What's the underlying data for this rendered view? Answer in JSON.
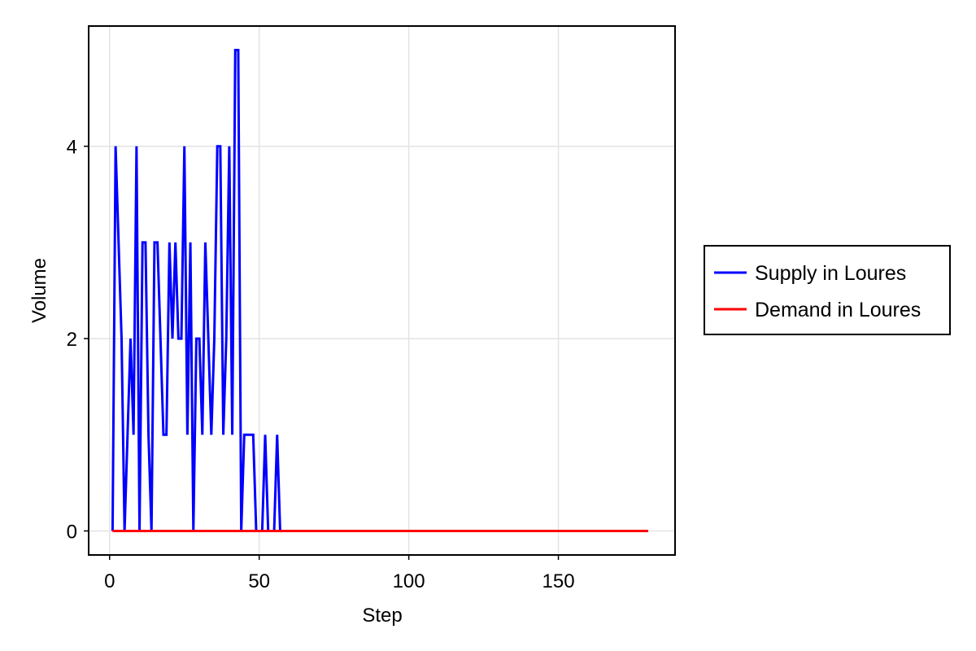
{
  "chart_data": {
    "type": "line",
    "title": "",
    "xlabel": "Step",
    "ylabel": "Volume",
    "xlim": [
      -7,
      189
    ],
    "ylim": [
      -0.25,
      5.25
    ],
    "x_ticks": [
      0,
      50,
      100,
      150
    ],
    "y_ticks": [
      0,
      2,
      4
    ],
    "x_tick_labels": [
      "0",
      "50",
      "100",
      "150"
    ],
    "y_tick_labels": [
      "0",
      "2",
      "4"
    ],
    "grid": true,
    "legend_position": "right",
    "series": [
      {
        "name": "Supply in Loures",
        "color": "#0000ff",
        "x": [
          1,
          2,
          3,
          4,
          5,
          6,
          7,
          8,
          9,
          10,
          11,
          12,
          13,
          14,
          15,
          16,
          17,
          18,
          19,
          20,
          21,
          22,
          23,
          24,
          25,
          26,
          27,
          28,
          29,
          30,
          31,
          32,
          33,
          34,
          35,
          36,
          37,
          38,
          39,
          40,
          41,
          42,
          43,
          44,
          45,
          46,
          47,
          48,
          49,
          50,
          51,
          52,
          53,
          54,
          55,
          56,
          57,
          58,
          59,
          60,
          61,
          62,
          63,
          64,
          65,
          66,
          67,
          68,
          69,
          70,
          71,
          72,
          73,
          74,
          75,
          76,
          77,
          78,
          79,
          80,
          81,
          82,
          83,
          84,
          85,
          86,
          87,
          88,
          89,
          90,
          91,
          92,
          93,
          94,
          95,
          96,
          97,
          98,
          99,
          100,
          101,
          102,
          103,
          104,
          105,
          106,
          107,
          108,
          109,
          110,
          111,
          112,
          113,
          114,
          115,
          116,
          117,
          118,
          119,
          120,
          121,
          122,
          123,
          124,
          125,
          126,
          127,
          128,
          129,
          130,
          131,
          132,
          133,
          134,
          135,
          136,
          137,
          138,
          139,
          140,
          141,
          142,
          143,
          144,
          145,
          146,
          147,
          148,
          149,
          150,
          151,
          152,
          153,
          154,
          155,
          156,
          157,
          158,
          159,
          160,
          161,
          162,
          163,
          164,
          165,
          166,
          167,
          168,
          169,
          170,
          171,
          172,
          173,
          174,
          175,
          176,
          177,
          178,
          179,
          180
        ],
        "y": [
          0,
          4,
          3,
          2,
          0,
          1,
          2,
          1,
          4,
          0,
          3,
          3,
          1,
          0,
          3,
          3,
          2,
          1,
          1,
          3,
          2,
          3,
          2,
          2,
          4,
          1,
          3,
          0,
          2,
          2,
          1,
          3,
          2,
          1,
          2,
          4,
          4,
          1,
          2,
          4,
          1,
          5,
          5,
          0,
          1,
          1,
          1,
          1,
          0,
          0,
          0,
          1,
          0,
          0,
          0,
          1,
          0,
          0,
          0,
          0,
          0,
          0,
          0,
          0,
          0,
          0,
          0,
          0,
          0,
          0,
          0,
          0,
          0,
          0,
          0,
          0,
          0,
          0,
          0,
          0,
          0,
          0,
          0,
          0,
          0,
          0,
          0,
          0,
          0,
          0,
          0,
          0,
          0,
          0,
          0,
          0,
          0,
          0,
          0,
          0,
          0,
          0,
          0,
          0,
          0,
          0,
          0,
          0,
          0,
          0,
          0,
          0,
          0,
          0,
          0,
          0,
          0,
          0,
          0,
          0,
          0,
          0,
          0,
          0,
          0,
          0,
          0,
          0,
          0,
          0,
          0,
          0,
          0,
          0,
          0,
          0,
          0,
          0,
          0,
          0,
          0,
          0,
          0,
          0,
          0,
          0,
          0,
          0,
          0,
          0,
          0,
          0,
          0,
          0,
          0,
          0,
          0,
          0,
          0,
          0,
          0,
          0,
          0,
          0,
          0,
          0,
          0,
          0,
          0,
          0,
          0,
          0,
          0,
          0,
          0,
          0,
          0,
          0,
          0,
          0
        ]
      },
      {
        "name": "Demand in Loures",
        "color": "#ff0000",
        "x": [
          1,
          180
        ],
        "y": [
          0,
          0
        ]
      }
    ]
  }
}
